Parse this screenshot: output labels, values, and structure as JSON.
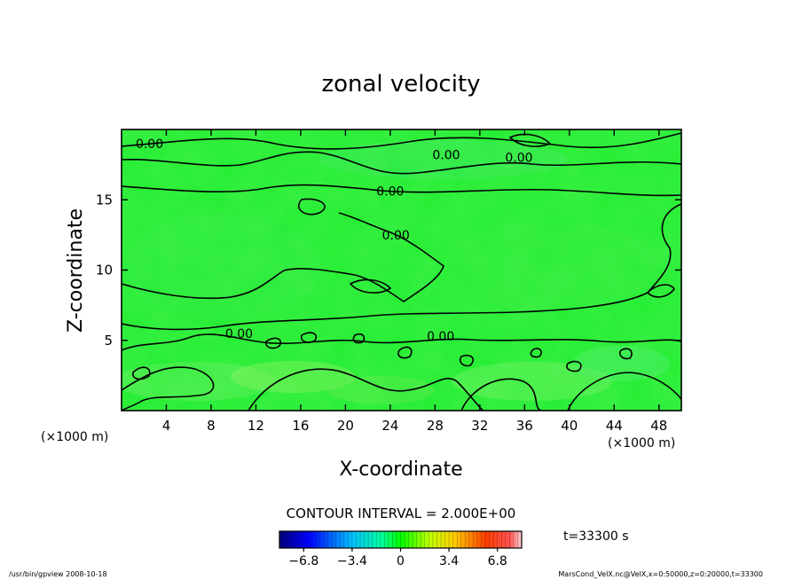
{
  "chart_data": {
    "type": "contour",
    "title": "zonal velocity",
    "xlabel": "X-coordinate",
    "ylabel": "Z-coordinate",
    "x_unit_label": "(×1000 m)",
    "y_unit_label": "(×1000 m)",
    "xlim": [
      0,
      50
    ],
    "ylim": [
      0,
      20
    ],
    "x_ticks": [
      4,
      8,
      12,
      16,
      20,
      24,
      28,
      32,
      36,
      40,
      44,
      48
    ],
    "y_ticks": [
      5,
      10,
      15
    ],
    "contour_interval_text": "CONTOUR INTERVAL = 2.000E+00",
    "time_text": "t=33300 s",
    "contour_labels": [
      {
        "text": "0.00",
        "x": 2.5,
        "z": 19.0
      },
      {
        "text": "0.00",
        "x": 29.0,
        "z": 18.2
      },
      {
        "text": "0.00",
        "x": 35.5,
        "z": 18.0
      },
      {
        "text": "0.00",
        "x": 24.0,
        "z": 15.6
      },
      {
        "text": "0.00",
        "x": 24.5,
        "z": 12.5
      },
      {
        "text": "0.00",
        "x": 10.5,
        "z": 5.5
      },
      {
        "text": "0.00",
        "x": 28.5,
        "z": 5.3
      }
    ],
    "colorbar": {
      "range": [
        -8.5,
        8.5
      ],
      "tick_labels": [
        "-6.8",
        "-3.4",
        "0",
        "3.4",
        "6.8"
      ],
      "tick_values": [
        -6.8,
        -3.4,
        0,
        3.4,
        6.8
      ]
    }
  },
  "footer": {
    "program": "/usr/bin/gpview   2008-10-18",
    "source": "MarsCond_VelX.nc@VelX,x=0:50000,z=0:20000,t=33300"
  },
  "colors": {
    "field": "#22ee33",
    "contour": "#000000"
  }
}
